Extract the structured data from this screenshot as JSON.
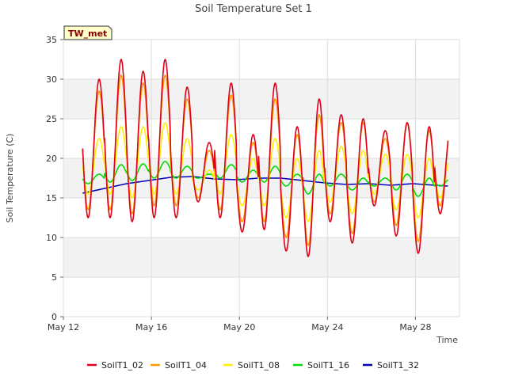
{
  "chart_data": {
    "type": "line",
    "title": "Soil Temperature Set 1",
    "xlabel": "Time",
    "ylabel": "Soil Temperature (C)",
    "badge": "TW_met",
    "xlim": [
      "2024-05-12",
      "2024-05-30"
    ],
    "ylim": [
      0,
      35
    ],
    "yticks": [
      0,
      5,
      10,
      15,
      20,
      25,
      30,
      35
    ],
    "xticks": [
      {
        "date": "2024-05-12",
        "label": "May 12"
      },
      {
        "date": "2024-05-16",
        "label": "May 16"
      },
      {
        "date": "2024-05-20",
        "label": "May 20"
      },
      {
        "date": "2024-05-24",
        "label": "May 24"
      },
      {
        "date": "2024-05-28",
        "label": "May 28"
      }
    ],
    "start_date": "2024-05-12T21:00",
    "series": [
      {
        "name": "SoilT1_02",
        "color": "#e0001a",
        "days": [
          [
            30.0,
            12.5
          ],
          [
            32.5,
            12.5
          ],
          [
            31.0,
            12.0
          ],
          [
            32.5,
            12.5
          ],
          [
            29.0,
            12.5
          ],
          [
            22.0,
            14.5
          ],
          [
            29.5,
            12.5
          ],
          [
            23.0,
            10.7
          ],
          [
            29.5,
            11.0
          ],
          [
            24.0,
            8.3
          ],
          [
            27.5,
            7.6
          ],
          [
            25.5,
            12.0
          ],
          [
            25.0,
            9.3
          ],
          [
            23.5,
            14.0
          ],
          [
            24.5,
            10.2
          ],
          [
            24.0,
            8.0
          ],
          [
            24.5,
            13.0
          ]
        ]
      },
      {
        "name": "SoilT1_04",
        "color": "#ff9900",
        "days": [
          [
            28.5,
            13.5
          ],
          [
            30.5,
            13.5
          ],
          [
            29.5,
            13.0
          ],
          [
            30.5,
            14.0
          ],
          [
            27.5,
            14.0
          ],
          [
            21.0,
            15.0
          ],
          [
            28.0,
            13.5
          ],
          [
            22.0,
            12.0
          ],
          [
            27.5,
            12.0
          ],
          [
            23.0,
            10.0
          ],
          [
            25.5,
            9.0
          ],
          [
            24.5,
            13.0
          ],
          [
            24.5,
            10.5
          ],
          [
            22.5,
            14.5
          ],
          [
            24.5,
            11.5
          ],
          [
            23.5,
            9.5
          ],
          [
            24.0,
            14.0
          ]
        ]
      },
      {
        "name": "SoilT1_08",
        "color": "#ffee00",
        "days": [
          [
            22.5,
            15.5
          ],
          [
            24.0,
            15.5
          ],
          [
            24.0,
            15.0
          ],
          [
            24.5,
            15.5
          ],
          [
            22.5,
            15.5
          ],
          [
            18.5,
            16.0
          ],
          [
            23.0,
            15.5
          ],
          [
            20.0,
            14.0
          ],
          [
            22.5,
            14.0
          ],
          [
            20.0,
            12.5
          ],
          [
            21.0,
            12.0
          ],
          [
            21.5,
            14.5
          ],
          [
            21.0,
            13.0
          ],
          [
            20.5,
            15.5
          ],
          [
            20.5,
            13.5
          ],
          [
            20.0,
            12.5
          ],
          [
            20.5,
            15.0
          ]
        ]
      },
      {
        "name": "SoilT1_16",
        "color": "#00dd00",
        "days": [
          [
            18.0,
            16.8
          ],
          [
            19.2,
            17.0
          ],
          [
            19.3,
            17.2
          ],
          [
            19.6,
            17.5
          ],
          [
            19.0,
            17.5
          ],
          [
            18.0,
            17.5
          ],
          [
            19.2,
            17.5
          ],
          [
            18.5,
            17.0
          ],
          [
            19.0,
            17.0
          ],
          [
            18.0,
            16.5
          ],
          [
            18.0,
            15.5
          ],
          [
            18.0,
            16.5
          ],
          [
            17.5,
            16.0
          ],
          [
            17.5,
            16.5
          ],
          [
            18.0,
            16.0
          ],
          [
            17.5,
            15.2
          ],
          [
            17.5,
            16.5
          ]
        ]
      },
      {
        "name": "SoilT1_32",
        "color": "#0000bb",
        "points": [
          [
            0,
            15.6
          ],
          [
            1,
            16.2
          ],
          [
            2,
            16.8
          ],
          [
            3,
            17.2
          ],
          [
            4,
            17.6
          ],
          [
            5,
            17.7
          ],
          [
            6,
            17.4
          ],
          [
            7,
            17.3
          ],
          [
            8,
            17.5
          ],
          [
            9,
            17.5
          ],
          [
            10,
            17.2
          ],
          [
            11,
            16.9
          ],
          [
            12,
            16.7
          ],
          [
            13,
            16.8
          ],
          [
            14,
            16.6
          ],
          [
            15,
            16.8
          ],
          [
            16,
            16.6
          ],
          [
            16.6,
            16.5
          ]
        ]
      }
    ]
  }
}
